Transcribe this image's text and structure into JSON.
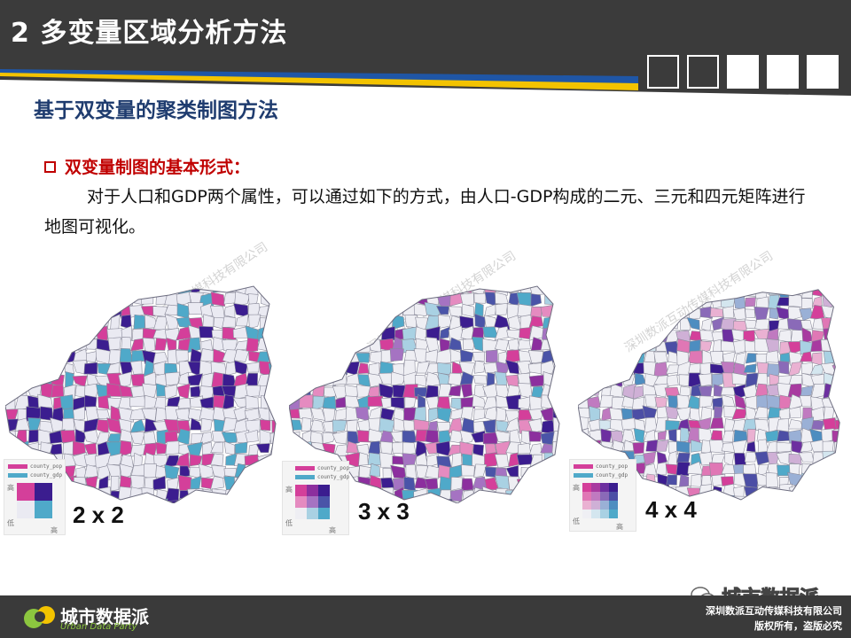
{
  "header": {
    "title": "2 多变量区域分析方法",
    "accent_color": "#f3c300",
    "band_color": "#1f56a6"
  },
  "subtitle": "基于双变量的聚类制图方法",
  "section": {
    "bullet_title": "双变量制图的基本形式：",
    "paragraph": "对于人口和GDP两个属性，可以通过如下的方式，由人口-GDP构成的二元、三元和四元矩阵进行地图可视化。"
  },
  "maps": [
    {
      "grid_label": "2 x 2",
      "legend": {
        "pop_label": "county_pop",
        "gdp_label": "county_gdp",
        "high": "高",
        "low": "低",
        "high2": "高"
      },
      "matrix_colors": [
        [
          "#d43f9a",
          "#3b1d8f"
        ],
        [
          "#eaeaf2",
          "#4fa9c9"
        ]
      ]
    },
    {
      "grid_label": "3 x 3",
      "legend": {
        "pop_label": "county_pop",
        "gdp_label": "county_gdp",
        "high": "高",
        "low": "低",
        "high2": "高"
      },
      "matrix_colors": [
        [
          "#d43f9a",
          "#8c2f9e",
          "#3b1d8f"
        ],
        [
          "#e58bc0",
          "#a573c2",
          "#4a54a8"
        ],
        [
          "#eeeef3",
          "#a9d1e3",
          "#4fa9c9"
        ]
      ]
    },
    {
      "grid_label": "4 x 4",
      "legend": {
        "pop_label": "county_pop",
        "gdp_label": "county_gdp",
        "high": "高",
        "low": "低",
        "high2": "高"
      },
      "matrix_colors": [
        [
          "#d43f9a",
          "#a83aa0",
          "#6d2fa0",
          "#3b1d8f"
        ],
        [
          "#e077b5",
          "#c07ac0",
          "#8a6ab8",
          "#4c4ea5"
        ],
        [
          "#eab1d2",
          "#cfb0d6",
          "#9ab0d6",
          "#4d8dc0"
        ],
        [
          "#efeff4",
          "#d4e6ef",
          "#a9d1e3",
          "#4fa9c9"
        ]
      ]
    }
  ],
  "watermark": "深圳数派互动传媒科技有限公司",
  "wechat_tag": "城市数据派",
  "footer": {
    "brand": "城市数据派",
    "brand_sub": "Urban Data Party",
    "company": "深圳数派互动传媒科技有限公司",
    "rights": "版权所有，盗版必究"
  }
}
